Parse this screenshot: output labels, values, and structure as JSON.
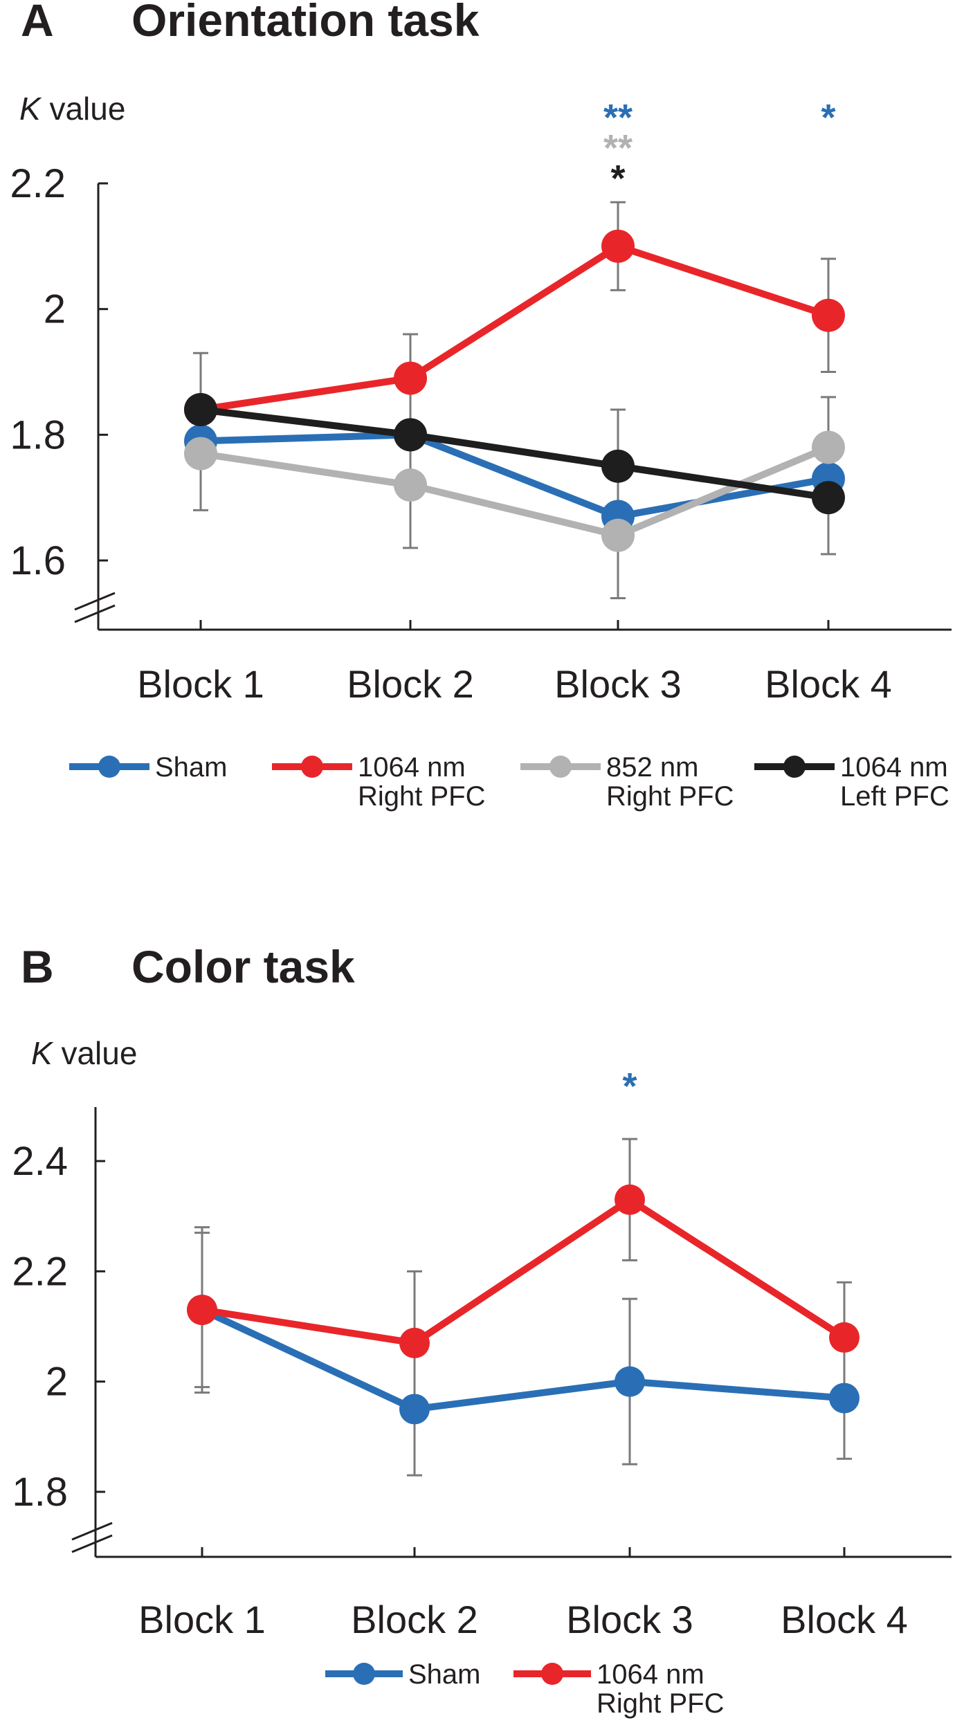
{
  "colors": {
    "sham": "#2a6fb5",
    "red_1064_right": "#e8262a",
    "gray_852_right": "#b2b2b2",
    "black_1064_left": "#1f1e1e",
    "error_bar": "#7a7a7a",
    "text": "#231f20"
  },
  "chart_data": [
    {
      "type": "line",
      "panel": "A",
      "title": "Orientation task",
      "ylabel_italic": "K",
      "ylabel_rest": " value",
      "ylim": [
        1.6,
        2.2
      ],
      "yticks": [
        1.6,
        1.8,
        2.0,
        2.2
      ],
      "ytick_labels": [
        "1.6",
        "1.8",
        "2",
        "2.2"
      ],
      "axis_break": true,
      "categories": [
        "Block 1",
        "Block 2",
        "Block 3",
        "Block 4"
      ],
      "series": [
        {
          "key": "sham",
          "values": [
            1.79,
            1.8,
            1.67,
            1.73
          ],
          "errors": [
            null,
            null,
            null,
            null
          ]
        },
        {
          "key": "gray_852_right",
          "values": [
            1.77,
            1.72,
            1.64,
            1.78
          ],
          "errors": [
            0.09,
            0.1,
            0.1,
            0.08
          ]
        },
        {
          "key": "red_1064_right",
          "values": [
            1.84,
            1.89,
            2.1,
            1.99
          ],
          "errors": [
            0.09,
            0.07,
            0.07,
            0.09
          ]
        },
        {
          "key": "black_1064_left",
          "values": [
            1.84,
            1.8,
            1.75,
            1.7
          ],
          "errors": [
            null,
            null,
            0.09,
            0.09
          ]
        }
      ],
      "significance": [
        {
          "category_index": 2,
          "rows": [
            {
              "text": "**",
              "color_key": "sham"
            },
            {
              "text": "**",
              "color_key": "gray_852_right"
            },
            {
              "text": "*",
              "color_key": "black_1064_left"
            }
          ]
        },
        {
          "category_index": 3,
          "rows": [
            {
              "text": "*",
              "color_key": "sham"
            }
          ]
        }
      ],
      "legend": [
        {
          "color_key": "sham",
          "line1": "Sham",
          "line2": ""
        },
        {
          "color_key": "red_1064_right",
          "line1": "1064 nm",
          "line2": "Right PFC"
        },
        {
          "color_key": "gray_852_right",
          "line1": "852 nm",
          "line2": "Right PFC"
        },
        {
          "color_key": "black_1064_left",
          "line1": "1064 nm",
          "line2": "Left PFC"
        }
      ]
    },
    {
      "type": "line",
      "panel": "B",
      "title": "Color task",
      "ylabel_italic": "K",
      "ylabel_rest": " value",
      "ylim": [
        1.8,
        2.4
      ],
      "yticks": [
        1.8,
        2.0,
        2.2,
        2.4
      ],
      "ytick_labels": [
        "1.8",
        "2",
        "2.2",
        "2.4"
      ],
      "axis_break": true,
      "categories": [
        "Block 1",
        "Block 2",
        "Block 3",
        "Block 4"
      ],
      "series": [
        {
          "key": "sham",
          "values": [
            2.13,
            1.95,
            2.0,
            1.97
          ],
          "errors": [
            0.15,
            0.12,
            0.15,
            0.11
          ]
        },
        {
          "key": "red_1064_right",
          "values": [
            2.13,
            2.07,
            2.33,
            2.08
          ],
          "errors": [
            0.14,
            0.13,
            0.11,
            0.1
          ]
        }
      ],
      "significance": [
        {
          "category_index": 2,
          "rows": [
            {
              "text": "*",
              "color_key": "sham"
            }
          ]
        }
      ],
      "legend": [
        {
          "color_key": "sham",
          "line1": "Sham",
          "line2": ""
        },
        {
          "color_key": "red_1064_right",
          "line1": "1064 nm",
          "line2": "Right PFC"
        }
      ]
    }
  ]
}
